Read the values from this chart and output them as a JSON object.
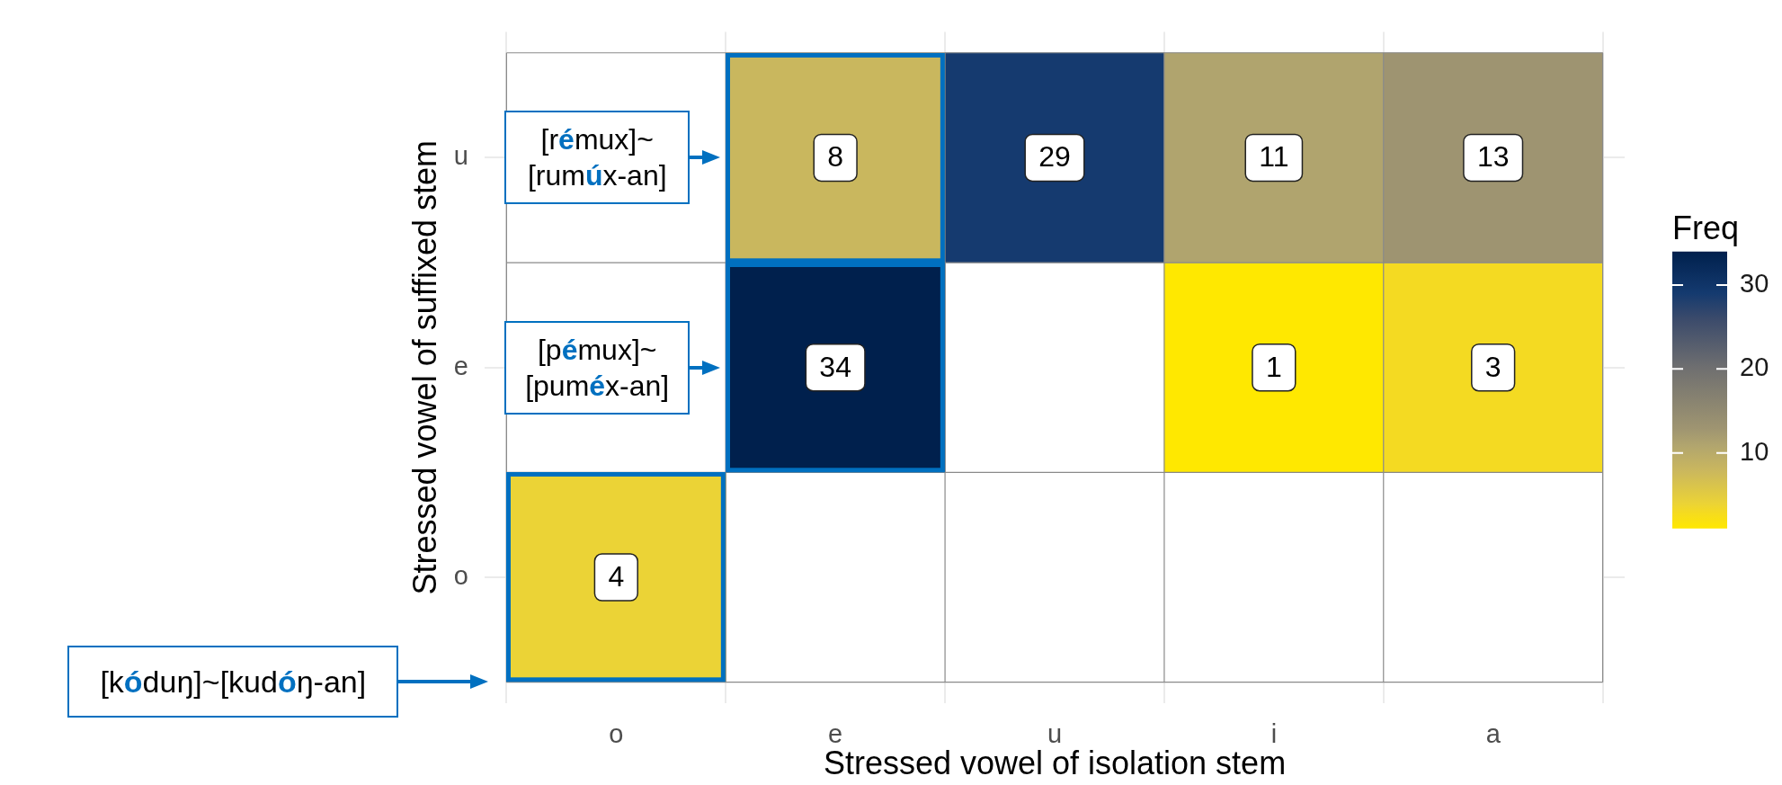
{
  "chart_data": {
    "type": "heatmap",
    "categories": [
      "o",
      "e",
      "u",
      "i",
      "a"
    ],
    "y_categories": [
      "u",
      "e",
      "o"
    ],
    "cells": [
      [
        null,
        8,
        29,
        11,
        13
      ],
      [
        null,
        34,
        null,
        1,
        3
      ],
      [
        4,
        null,
        null,
        null,
        null
      ]
    ],
    "xlabel": "Stressed vowel of isolation stem",
    "ylabel": "Stressed vowel of suffixed stem",
    "clabel": "Freq",
    "clim": [
      1,
      34
    ],
    "cticks": [
      10,
      20,
      30
    ],
    "data_labels": true,
    "grid": true,
    "annotations": [
      "[rémux]~[rumúx-an]",
      "[pémux]~[puméx-an]",
      "[kóduŋ]~[kudóŋ-an]"
    ]
  }
}
